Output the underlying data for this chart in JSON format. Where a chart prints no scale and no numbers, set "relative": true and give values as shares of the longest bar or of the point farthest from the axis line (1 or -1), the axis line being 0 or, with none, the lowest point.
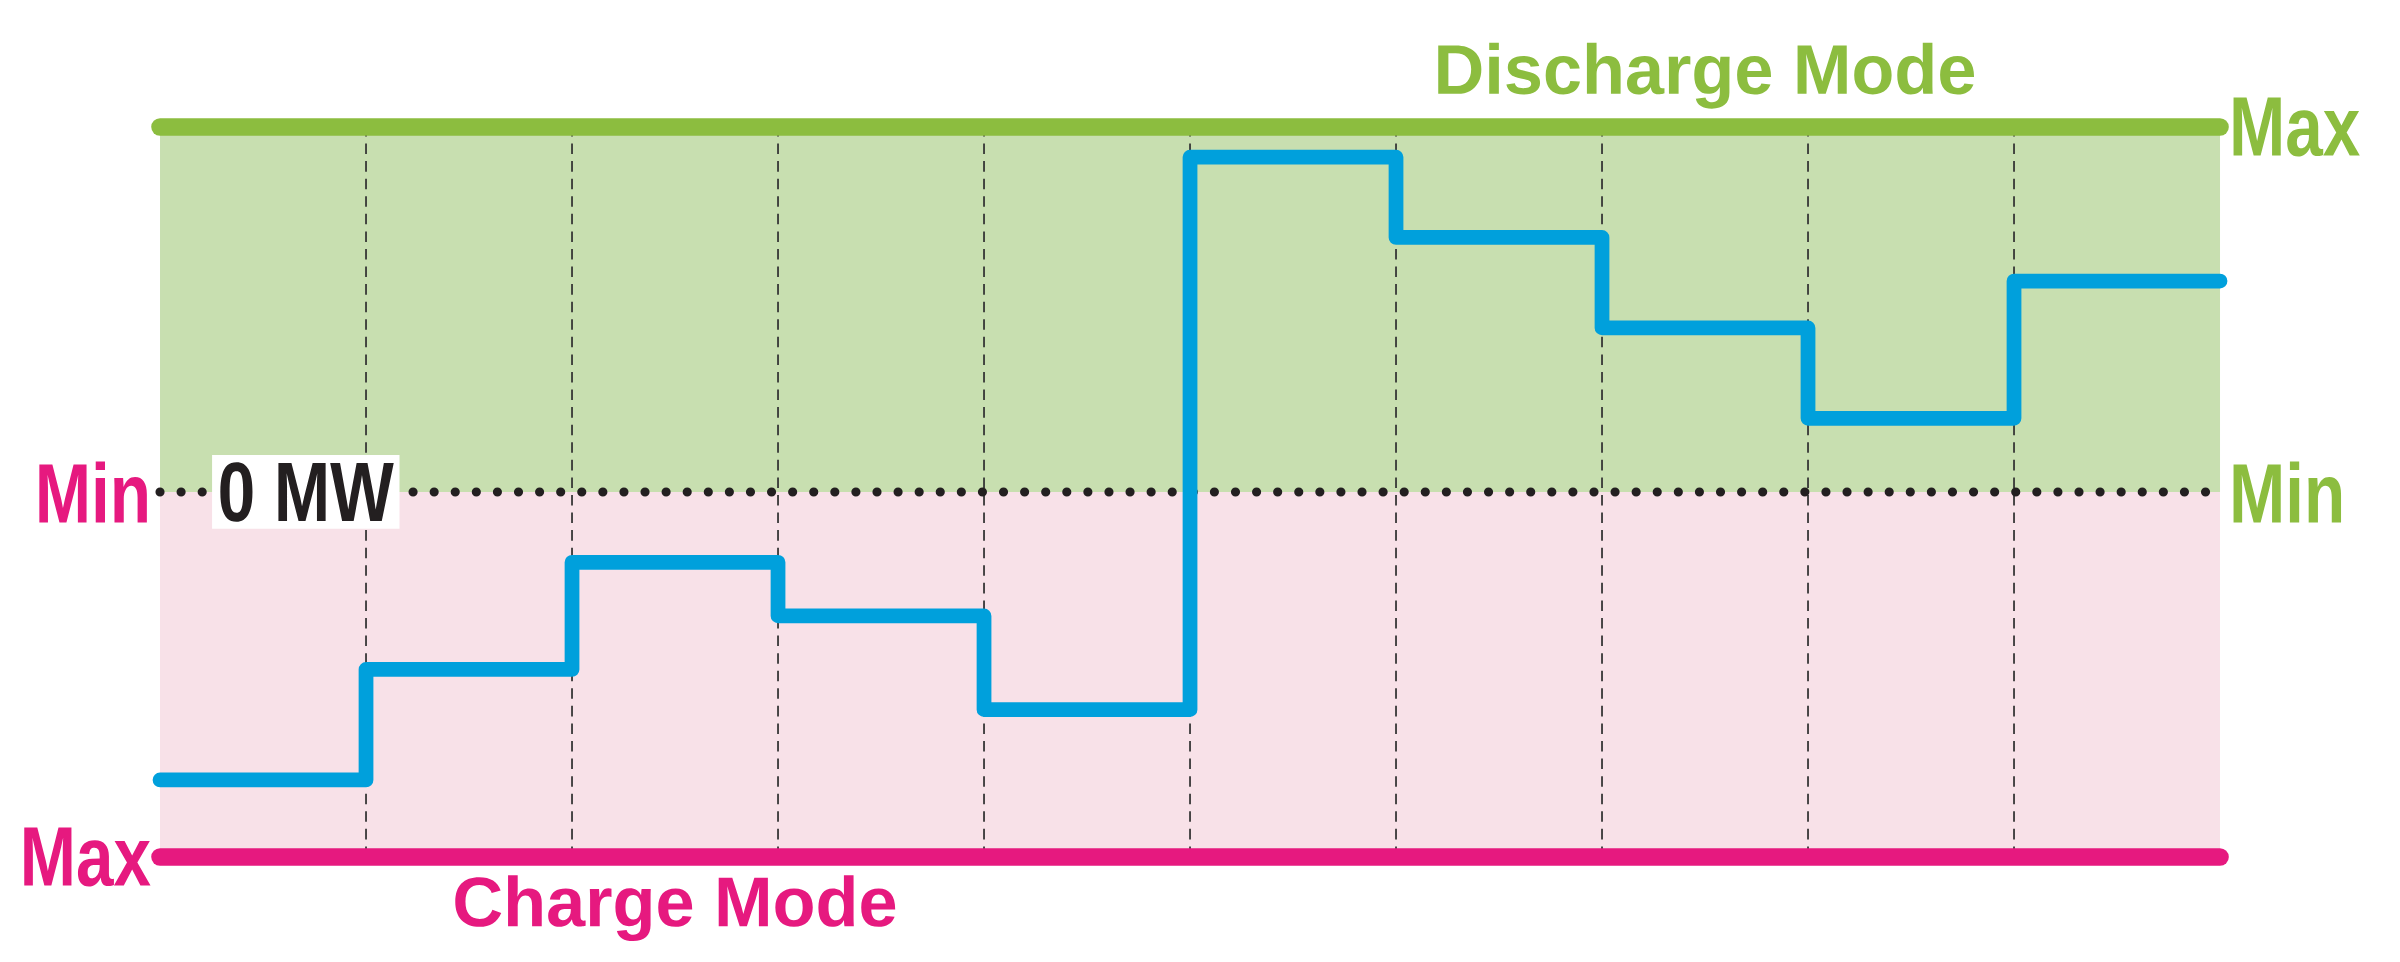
{
  "chart_data": {
    "type": "step",
    "relative": true,
    "categories": [
      null,
      null,
      null,
      null,
      null,
      null,
      null,
      null,
      null,
      null,
      null
    ],
    "series": [
      {
        "color": "#00a0dc",
        "values": [
          -0.86,
          -0.53,
          -0.21,
          -0.37,
          -0.65,
          1,
          0.76,
          0.49,
          0.22,
          0.63,
          0.63
        ]
      }
    ],
    "bands": [
      {
        "axis": "y",
        "from": 0,
        "to": 1.09,
        "label": "Discharge Mode",
        "color": "#c8dfb0"
      },
      {
        "axis": "y",
        "from": -1.09,
        "to": 0,
        "label": "Charge Mode",
        "color": "#f8e1e8"
      }
    ],
    "ref_lines": [
      {
        "axis": "y",
        "value": 1.09,
        "label": "Max",
        "color": "#8cbd3f",
        "line_style": "solid"
      },
      {
        "axis": "y",
        "value": -1.09,
        "label": "Max",
        "color": "#e6197f",
        "line_style": "solid"
      },
      {
        "axis": "y",
        "value": 0,
        "label": "0 MW",
        "color": "#231f20",
        "line_style": "dotted"
      }
    ],
    "annotations": [
      "Min",
      "Min"
    ],
    "grid": "x",
    "line_style": "solid",
    "marker": "none"
  }
}
